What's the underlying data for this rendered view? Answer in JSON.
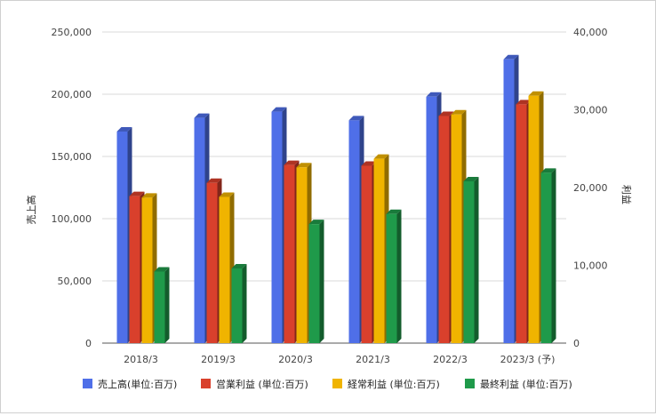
{
  "chart_data": {
    "type": "bar",
    "style": "3d-clustered-column",
    "categories": [
      "2018/3",
      "2019/3",
      "2020/3",
      "2021/3",
      "2022/3",
      "2023/3 (予)"
    ],
    "series": [
      {
        "name": "売上高(単位:百万)",
        "axis": "left",
        "color": "#4f6fe8",
        "values": [
          170000,
          181000,
          186000,
          179000,
          198000,
          228000
        ]
      },
      {
        "name": "営業利益 (単位:百万)",
        "axis": "right",
        "color": "#d9402c",
        "values": [
          18900,
          20600,
          22900,
          22800,
          29200,
          30700
        ]
      },
      {
        "name": "経常利益 (単位:百万)",
        "axis": "right",
        "color": "#f0b400",
        "values": [
          18700,
          18800,
          22600,
          23700,
          29400,
          31800
        ]
      },
      {
        "name": "最終利益 (単位:百万)",
        "axis": "right",
        "color": "#1f9a4a",
        "values": [
          9200,
          9600,
          15300,
          16600,
          20800,
          21900
        ]
      }
    ],
    "ylabel_left": "売上高",
    "ylabel_right": "利益",
    "ylim_left": [
      0,
      250000
    ],
    "ylim_right": [
      0,
      40000
    ],
    "yticks_left": [
      "0",
      "50,000",
      "100,000",
      "150,000",
      "200,000",
      "250,000"
    ],
    "yticks_right": [
      "0",
      "10,000",
      "20,000",
      "30,000",
      "40,000"
    ],
    "grid": true,
    "legend": "bottom"
  }
}
